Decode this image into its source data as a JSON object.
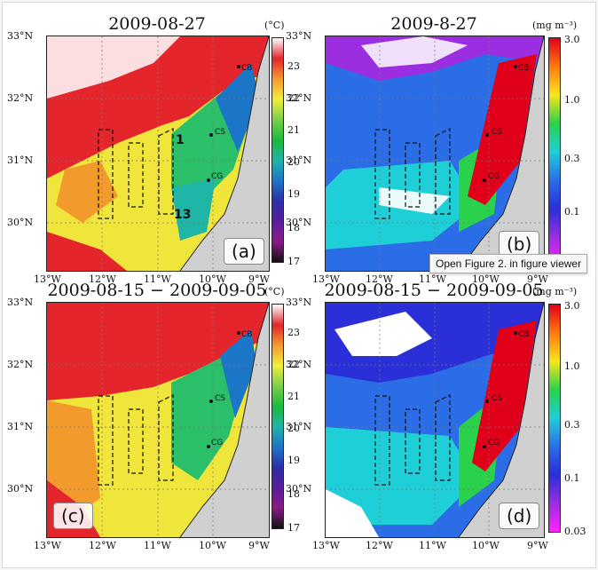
{
  "panels": [
    {
      "title": "2009-08-27",
      "label": "(a)",
      "kind": "sst"
    },
    {
      "title": "2009-8-27",
      "label": "(b)",
      "kind": "chl"
    },
    {
      "title": "2009-08-15 − 2009-09-05",
      "label": "(c)",
      "kind": "sst"
    },
    {
      "title": "2009-08-15 − 2009-09-05",
      "label": "(d)",
      "kind": "chl"
    }
  ],
  "axes": {
    "lat_labels": [
      "33°N",
      "32°N",
      "31°N",
      "30°N"
    ],
    "lon_labels": [
      "13°W",
      "12°W",
      "11°W",
      "10°W",
      "9°W"
    ]
  },
  "sst_colorbar": {
    "unit": "(°C)",
    "ticks": [
      "23",
      "22",
      "21",
      "20",
      "19",
      "18",
      "17"
    ],
    "colors": [
      "#ffffff",
      "#e4252c",
      "#f39a2d",
      "#f2ee3a",
      "#7bd14b",
      "#19bb3b",
      "#1fb5a7",
      "#1c76c8",
      "#2c2fa8",
      "#5a1c9d",
      "#8a1c86",
      "#111111"
    ]
  },
  "chl_colorbar": {
    "unit": "(mg m⁻³)",
    "ticks": [
      "3.0",
      "1.0",
      "0.3",
      "0.1",
      "0.03"
    ],
    "colors": [
      "#e0001a",
      "#ff7a10",
      "#f7e61c",
      "#2ad24b",
      "#1fcfd8",
      "#2b6de6",
      "#2a2fd8",
      "#9a2ee0",
      "#ff22ff"
    ]
  },
  "stations": [
    "CB",
    "CS",
    "CG"
  ],
  "annotations": [
    "1",
    "13"
  ],
  "tooltip": "Open Figure 2.  in figure viewer"
}
